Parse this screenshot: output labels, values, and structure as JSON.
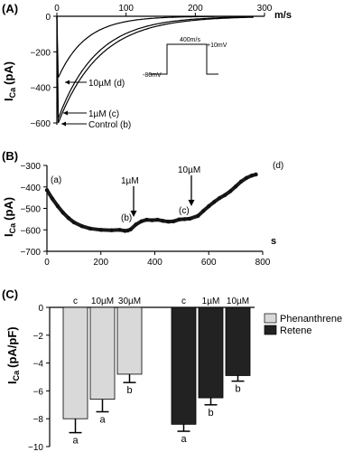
{
  "panels": {
    "a": {
      "label": "(A)",
      "xunit": "m/s",
      "ylabel_main": "I",
      "ylabel_sub": "Ca",
      "ylabel_unit": "(pA)",
      "inset": {
        "step_duration": "400m/s",
        "step_voltage": "+10mV",
        "holding": "-80mV"
      },
      "annotations": {
        "d": "10µM (d)",
        "c": "1µM (c)",
        "b": "Control (b)"
      }
    },
    "b": {
      "label": "(B)",
      "xunit": "s",
      "ylabel_main": "I",
      "ylabel_sub": "Ca",
      "ylabel_unit": "(pA)",
      "arrows": {
        "first": "1µM",
        "second": "10µM"
      },
      "point_labels": {
        "a": "(a)",
        "b": "(b)",
        "c": "(c)",
        "d": "(d)"
      }
    },
    "c": {
      "label": "(C)",
      "ylabel_main": "I",
      "ylabel_sub": "Ca",
      "ylabel_unit": "(pA/pF)",
      "legend": {
        "phen": "Phenanthrene",
        "ret": "Retene"
      }
    }
  },
  "colors": {
    "phen": "#d9d9d9",
    "ret": "#222222"
  },
  "chart_data": [
    {
      "type": "line",
      "xlim": [
        0,
        300
      ],
      "ylim": [
        -600,
        0
      ],
      "xticks": [
        0,
        100,
        200,
        300
      ],
      "yticks": [
        0,
        -200,
        -400,
        -600
      ],
      "series": [
        {
          "name": "Control (b)",
          "peak": -600
        },
        {
          "name": "1µM (c)",
          "peak": -575
        },
        {
          "name": "10µM (d)",
          "peak": -345
        }
      ]
    },
    {
      "type": "scatter",
      "xlim": [
        0,
        800
      ],
      "ylim": [
        -700,
        -300
      ],
      "xticks": [
        0,
        200,
        400,
        600,
        800
      ],
      "yticks": [
        -300,
        -400,
        -500,
        -600,
        -700
      ],
      "points": [
        [
          0,
          -415
        ],
        [
          20,
          -455
        ],
        [
          40,
          -490
        ],
        [
          60,
          -520
        ],
        [
          80,
          -545
        ],
        [
          100,
          -565
        ],
        [
          130,
          -583
        ],
        [
          160,
          -594
        ],
        [
          200,
          -600
        ],
        [
          240,
          -602
        ],
        [
          270,
          -600
        ],
        [
          290,
          -605
        ],
        [
          300,
          -603
        ],
        [
          310,
          -598
        ],
        [
          330,
          -575
        ],
        [
          350,
          -560
        ],
        [
          370,
          -553
        ],
        [
          390,
          -555
        ],
        [
          410,
          -553
        ],
        [
          430,
          -558
        ],
        [
          450,
          -562
        ],
        [
          470,
          -560
        ],
        [
          490,
          -552
        ],
        [
          510,
          -550
        ],
        [
          530,
          -548
        ],
        [
          560,
          -535
        ],
        [
          580,
          -512
        ],
        [
          600,
          -490
        ],
        [
          620,
          -470
        ],
        [
          640,
          -452
        ],
        [
          660,
          -438
        ],
        [
          680,
          -420
        ],
        [
          700,
          -398
        ],
        [
          720,
          -375
        ],
        [
          740,
          -358
        ],
        [
          760,
          -347
        ],
        [
          775,
          -342
        ]
      ]
    },
    {
      "type": "bar",
      "ylim": [
        -10,
        0
      ],
      "yticks": [
        0,
        -2,
        -4,
        -6,
        -8,
        -10
      ],
      "series": [
        {
          "name": "Phenanthrene",
          "categories": [
            "c",
            "10µM",
            "30µM"
          ],
          "values": [
            -8.0,
            -6.6,
            -4.8
          ],
          "errors": [
            1.0,
            0.9,
            0.6
          ],
          "letters": [
            "a",
            "a",
            "b"
          ]
        },
        {
          "name": "Retene",
          "categories": [
            "c",
            "1µM",
            "10µM"
          ],
          "values": [
            -8.4,
            -6.5,
            -4.9
          ],
          "errors": [
            0.5,
            0.5,
            0.4
          ],
          "letters": [
            "a",
            "b",
            "b"
          ]
        }
      ]
    }
  ]
}
